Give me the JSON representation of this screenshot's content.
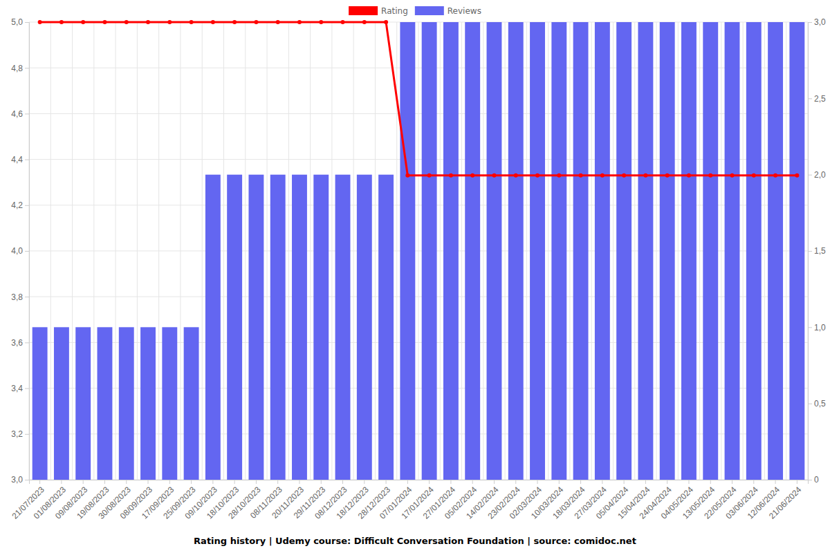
{
  "chart_data": {
    "type": "bar",
    "title": "Rating history | Udemy course: Difficult Conversation Foundation | source: comidoc.net",
    "categories": [
      "21/07/2023",
      "01/08/2023",
      "09/08/2023",
      "19/08/2023",
      "30/08/2023",
      "08/09/2023",
      "17/09/2023",
      "25/09/2023",
      "09/10/2023",
      "18/10/2023",
      "28/10/2023",
      "08/11/2023",
      "20/11/2023",
      "29/11/2023",
      "08/12/2023",
      "18/12/2023",
      "28/12/2023",
      "07/01/2024",
      "17/01/2024",
      "27/01/2024",
      "05/02/2024",
      "14/02/2024",
      "23/02/2024",
      "02/03/2024",
      "10/03/2024",
      "18/03/2024",
      "27/03/2024",
      "05/04/2024",
      "15/04/2024",
      "24/04/2024",
      "04/05/2024",
      "13/05/2024",
      "22/05/2024",
      "03/06/2024",
      "12/06/2024",
      "21/06/2024"
    ],
    "series": [
      {
        "name": "Rating",
        "type": "line",
        "color": "#ff0000",
        "marker": "circle",
        "axis": "y",
        "values": [
          5,
          5,
          5,
          5,
          5,
          5,
          5,
          5,
          5,
          5,
          5,
          5,
          5,
          5,
          5,
          5,
          5,
          4.33,
          4.33,
          4.33,
          4.33,
          4.33,
          4.33,
          4.33,
          4.33,
          4.33,
          4.33,
          4.33,
          4.33,
          4.33,
          4.33,
          4.33,
          4.33,
          4.33,
          4.33,
          4.33
        ]
      },
      {
        "name": "Reviews",
        "type": "bar",
        "color": "#6366f1",
        "axis": "y2",
        "values": [
          1,
          1,
          1,
          1,
          1,
          1,
          1,
          1,
          2,
          2,
          2,
          2,
          2,
          2,
          2,
          2,
          2,
          3,
          3,
          3,
          3,
          3,
          3,
          3,
          3,
          3,
          3,
          3,
          3,
          3,
          3,
          3,
          3,
          3,
          3,
          3
        ]
      }
    ],
    "ylim": [
      3,
      5
    ],
    "yticks": [
      {
        "value": 3,
        "label": "3,0"
      },
      {
        "value": 3.2,
        "label": "3,2"
      },
      {
        "value": 3.4,
        "label": "3,4"
      },
      {
        "value": 3.6,
        "label": "3,6"
      },
      {
        "value": 3.8,
        "label": "3,8"
      },
      {
        "value": 4,
        "label": "4,0"
      },
      {
        "value": 4.2,
        "label": "4,2"
      },
      {
        "value": 4.4,
        "label": "4,4"
      },
      {
        "value": 4.6,
        "label": "4,6"
      },
      {
        "value": 4.8,
        "label": "4,8"
      },
      {
        "value": 5,
        "label": "5,0"
      }
    ],
    "y2lim": [
      0,
      3
    ],
    "y2ticks": [
      0,
      {
        "value": 0.5,
        "label": "0,5"
      },
      {
        "value": 1,
        "label": "1,0"
      },
      {
        "value": 1.5,
        "label": "1,5"
      },
      {
        "value": 2,
        "label": "2,0"
      },
      {
        "value": 2.5,
        "label": "2,5"
      },
      {
        "value": 3,
        "label": "3,0"
      }
    ],
    "grid": true,
    "legend": "top"
  }
}
